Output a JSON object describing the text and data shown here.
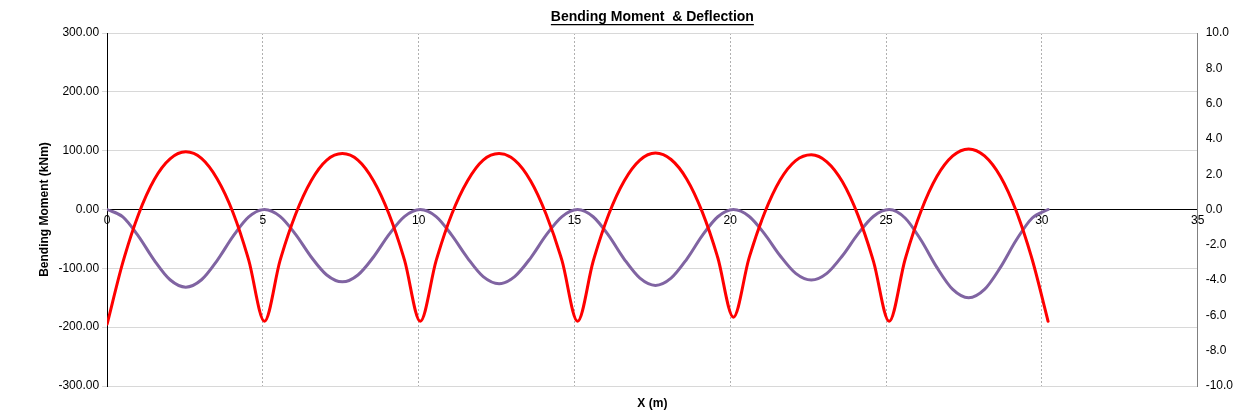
{
  "chart_data": {
    "type": "line",
    "title": "Bending Moment  & Deflection",
    "xlabel": "X (m)",
    "ylabel": "Bending Moment (kNm)",
    "xlim": [
      0,
      35
    ],
    "xticks": [
      0,
      5,
      10,
      15,
      20,
      25,
      30,
      35
    ],
    "ylim": [
      -300,
      300
    ],
    "yticks": [
      {
        "value": -300,
        "label": "-300.00"
      },
      {
        "value": -200,
        "label": "-200.00"
      },
      {
        "value": -100,
        "label": "-100.00"
      },
      {
        "value": 0,
        "label": "0.00"
      },
      {
        "value": 100,
        "label": "100.00"
      },
      {
        "value": 200,
        "label": "200.00"
      },
      {
        "value": 300,
        "label": "300.00"
      }
    ],
    "y2lim": [
      -10,
      10
    ],
    "y2ticks": [
      {
        "value": -10,
        "label": "-10.0"
      },
      {
        "value": -8,
        "label": "-8.0"
      },
      {
        "value": -6,
        "label": "-6.0"
      },
      {
        "value": -4,
        "label": "-4.0"
      },
      {
        "value": -2,
        "label": "-2.0"
      },
      {
        "value": 0,
        "label": "0.0"
      },
      {
        "value": 2,
        "label": "2.0"
      },
      {
        "value": 4,
        "label": "4.0"
      },
      {
        "value": 6,
        "label": "6.0"
      },
      {
        "value": 8,
        "label": "8.0"
      },
      {
        "value": 10,
        "label": "10.0"
      }
    ],
    "grid": true,
    "legend": false,
    "x": [
      0,
      0.505,
      1.01,
      1.515,
      2.02,
      2.525,
      3.03,
      3.535,
      4.04,
      4.545,
      5.05,
      5.55,
      6.05,
      6.55,
      7.05,
      7.55,
      8.05,
      8.55,
      9.05,
      9.55,
      10.05,
      10.56,
      11.06,
      11.57,
      12.07,
      12.58,
      13.08,
      13.59,
      14.09,
      14.6,
      15.1,
      15.6,
      16.1,
      16.6,
      17.1,
      17.6,
      18.1,
      18.6,
      19.1,
      19.6,
      20.1,
      20.6,
      21.1,
      21.6,
      22.1,
      22.6,
      23.1,
      23.6,
      24.1,
      24.6,
      25.1,
      25.61,
      26.12,
      26.63,
      27.14,
      27.65,
      28.16,
      28.67,
      29.18,
      29.69,
      30.2
    ],
    "series": [
      {
        "color": "#ff0000",
        "values": [
          -195,
          -90,
          -8,
          51,
          86,
          98,
          87,
          52,
          -5,
          -86,
          -190,
          -87,
          -8,
          49,
          84,
          95,
          84,
          49,
          -8,
          -87,
          -190,
          -87,
          -8,
          49,
          84,
          95,
          84,
          49,
          -8,
          -87,
          -190,
          -88,
          -8,
          49,
          84,
          96,
          85,
          52,
          -4,
          -82,
          -183,
          -83,
          -6,
          50,
          83,
          93,
          81,
          47,
          -10,
          -89,
          -190,
          -85,
          -3,
          56,
          91,
          103,
          91,
          56,
          -3,
          -85,
          -190
        ]
      },
      {
        "color": "#8064a2",
        "axis": "y2",
        "values": [
          0,
          -0.42,
          -1.52,
          -2.88,
          -3.98,
          -4.4,
          -3.98,
          -2.88,
          -1.52,
          -0.42,
          0,
          -0.39,
          -1.41,
          -2.69,
          -3.71,
          -4.1,
          -3.71,
          -2.69,
          -1.41,
          -0.39,
          0,
          -0.4,
          -1.45,
          -2.75,
          -3.8,
          -4.2,
          -3.8,
          -2.75,
          -1.45,
          -0.4,
          0,
          -0.41,
          -1.48,
          -2.82,
          -3.89,
          -4.3,
          -3.89,
          -2.82,
          -1.48,
          -0.41,
          0,
          -0.38,
          -1.38,
          -2.62,
          -3.62,
          -4.0,
          -3.62,
          -2.62,
          -1.38,
          -0.38,
          0,
          -0.48,
          -1.73,
          -3.28,
          -4.53,
          -5.0,
          -4.53,
          -3.28,
          -1.73,
          -0.48,
          0
        ]
      }
    ]
  }
}
